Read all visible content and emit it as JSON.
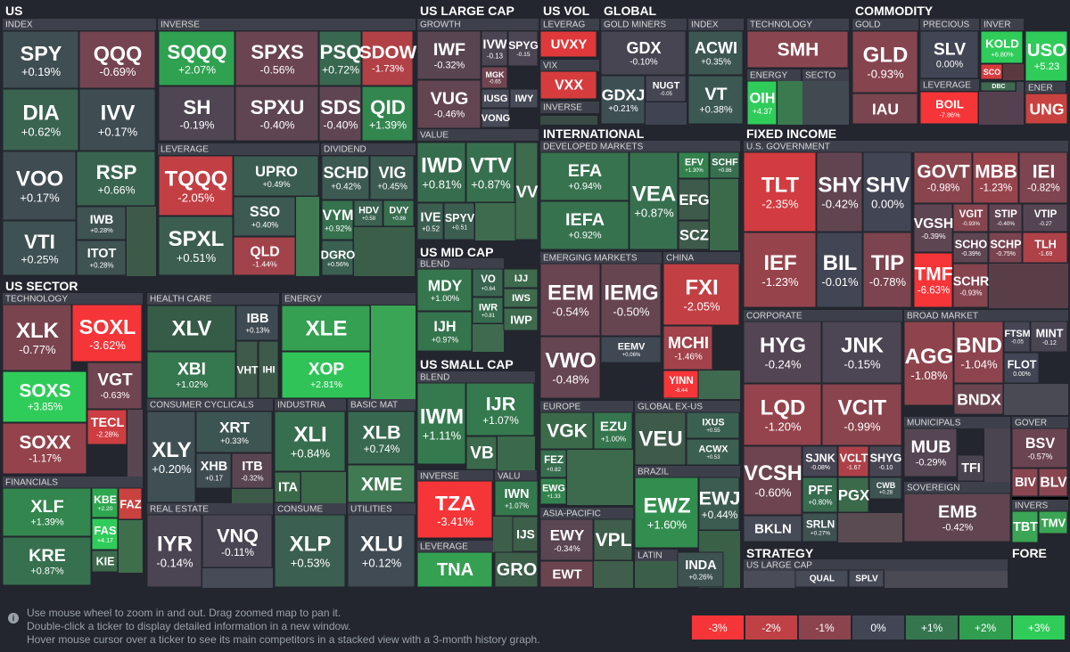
{
  "headers": [
    "US",
    "US LARGE CAP",
    "US VOL",
    "GLOBAL",
    "COMMODITY",
    "US SECTOR",
    "US MID CAP",
    "US SMALL CAP",
    "INTERNATIONAL",
    "FIXED INCOME",
    "STRATEGY",
    "FORE",
    "INDEX",
    "INVERSE",
    "LEVERAGE",
    "DIVIDEND",
    "TECHNOLOGY",
    "FINANCIALS",
    "HEALTH CARE",
    "ENERGY",
    "CONSUMER CYCLICALS",
    "INDUSTRIA",
    "BASIC MAT",
    "REAL ESTATE",
    "CONSUME",
    "UTILITIES",
    "GROWTH",
    "VALUE",
    "BLEND",
    "BLEND",
    "INVERSE",
    "VALU",
    "LEVERAGE",
    "LEVERAG",
    "VIX",
    "INVERSE",
    "GOLD MINERS",
    "INDEX",
    "TECHNOLOGY",
    "ENERGY",
    "SECTO",
    "GOLD",
    "PRECIOUS",
    "INVER",
    "LEVERAGE",
    "ENER",
    "DEVELOPED MARKETS",
    "EMERGING MARKETS",
    "CHINA",
    "EUROPE",
    "GLOBAL EX-US",
    "ASIA-PACIFIC",
    "BRAZIL",
    "LATIN",
    "U.S. GOVERNMENT",
    "CORPORATE",
    "BROAD MARKET",
    "MUNICIPALS",
    "GOVER",
    "SOVEREIGN",
    "INVERS",
    "US LARGE CAP"
  ],
  "tiles": [
    {
      "ticker": "SPY",
      "change": "+0.19%"
    },
    {
      "ticker": "QQQ",
      "change": "-0.69%"
    },
    {
      "ticker": "DIA",
      "change": "+0.62%"
    },
    {
      "ticker": "IVV",
      "change": "+0.17%"
    },
    {
      "ticker": "VOO",
      "change": "+0.17%"
    },
    {
      "ticker": "RSP",
      "change": "+0.66%"
    },
    {
      "ticker": "IWB",
      "change": "+0.28%"
    },
    {
      "ticker": "ITOT",
      "change": "+0.28%"
    },
    {
      "ticker": "VTI",
      "change": "+0.25%"
    },
    {
      "ticker": "SQQQ",
      "change": "+2.07%"
    },
    {
      "ticker": "SPXS",
      "change": "-0.56%"
    },
    {
      "ticker": "PSQ",
      "change": "+0.72%"
    },
    {
      "ticker": "SDOW",
      "change": "-1.73%"
    },
    {
      "ticker": "SH",
      "change": "-0.19%"
    },
    {
      "ticker": "SPXU",
      "change": "-0.40%"
    },
    {
      "ticker": "SDS",
      "change": "-0.40%"
    },
    {
      "ticker": "QID",
      "change": "+1.39%"
    },
    {
      "ticker": "TQQQ",
      "change": "-2.05%"
    },
    {
      "ticker": "UPRO",
      "change": "+0.49%"
    },
    {
      "ticker": "SSO",
      "change": "+0.40%"
    },
    {
      "ticker": "QLD",
      "change": "-1.44%"
    },
    {
      "ticker": "SPXL",
      "change": "+0.51%"
    },
    {
      "ticker": "SCHD",
      "change": "+0.42%"
    },
    {
      "ticker": "VIG",
      "change": "+0.45%"
    },
    {
      "ticker": "VYM",
      "change": "+0.92%"
    },
    {
      "ticker": "HDV",
      "change": "+0.58"
    },
    {
      "ticker": "DVY",
      "change": "+0.86"
    },
    {
      "ticker": "DGRO",
      "change": "+0.56%"
    },
    {
      "ticker": "XLK",
      "change": "-0.77%"
    },
    {
      "ticker": "SOXL",
      "change": "-3.62%"
    },
    {
      "ticker": "VGT",
      "change": "-0.63%"
    },
    {
      "ticker": "SOXS",
      "change": "+3.85%"
    },
    {
      "ticker": "SOXX",
      "change": "-1.17%"
    },
    {
      "ticker": "TECL",
      "change": "-2.28%"
    },
    {
      "ticker": "XLF",
      "change": "+1.39%"
    },
    {
      "ticker": "KRE",
      "change": "+0.87%"
    },
    {
      "ticker": "KBE",
      "change": "+2.20"
    },
    {
      "ticker": "FAZ"
    },
    {
      "ticker": "FAS",
      "change": "+4.17"
    },
    {
      "ticker": "KIE"
    },
    {
      "ticker": "XLV"
    },
    {
      "ticker": "XBI",
      "change": "+1.02%"
    },
    {
      "ticker": "IBB",
      "change": "+0.13%"
    },
    {
      "ticker": "VHT"
    },
    {
      "ticker": "IHI"
    },
    {
      "ticker": "XLE"
    },
    {
      "ticker": "XOP",
      "change": "+2.81%"
    },
    {
      "ticker": "XLY",
      "change": "+0.20%"
    },
    {
      "ticker": "XRT",
      "change": "+0.33%"
    },
    {
      "ticker": "XHB",
      "change": "+0.17"
    },
    {
      "ticker": "ITB",
      "change": "-0.32%"
    },
    {
      "ticker": "XLI",
      "change": "+0.84%"
    },
    {
      "ticker": "ITA"
    },
    {
      "ticker": "XLB",
      "change": "+0.74%"
    },
    {
      "ticker": "XME"
    },
    {
      "ticker": "IYR",
      "change": "-0.14%"
    },
    {
      "ticker": "VNQ",
      "change": "-0.11%"
    },
    {
      "ticker": "XLP",
      "change": "+0.53%"
    },
    {
      "ticker": "XLU",
      "change": "+0.12%"
    },
    {
      "ticker": "IWF",
      "change": "-0.32%"
    },
    {
      "ticker": "IVW",
      "change": "-0.13"
    },
    {
      "ticker": "SPYG",
      "change": "-0.15"
    },
    {
      "ticker": "VUG",
      "change": "-0.46%"
    },
    {
      "ticker": "MGK",
      "change": "-0.65"
    },
    {
      "ticker": "IUSG"
    },
    {
      "ticker": "IWY"
    },
    {
      "ticker": "VONG"
    },
    {
      "ticker": "IWD",
      "change": "+0.81%"
    },
    {
      "ticker": "VTV",
      "change": "+0.87%"
    },
    {
      "ticker": "IVE",
      "change": "+0.52"
    },
    {
      "ticker": "SPYV",
      "change": "+0.51"
    },
    {
      "ticker": "VV"
    },
    {
      "ticker": "MDY",
      "change": "+1.00%"
    },
    {
      "ticker": "VO",
      "change": "+0.64"
    },
    {
      "ticker": "IJJ"
    },
    {
      "ticker": "IWS"
    },
    {
      "ticker": "IWR",
      "change": "+0.81"
    },
    {
      "ticker": "IWP"
    },
    {
      "ticker": "IJH",
      "change": "+0.97%"
    },
    {
      "ticker": "IWM",
      "change": "+1.11%"
    },
    {
      "ticker": "IJR",
      "change": "+1.07%"
    },
    {
      "ticker": "VB"
    },
    {
      "ticker": "TZA",
      "change": "-3.41%"
    },
    {
      "ticker": "TNA"
    },
    {
      "ticker": "IWN",
      "change": "+1.07%"
    },
    {
      "ticker": "IJS"
    },
    {
      "ticker": "GRO"
    },
    {
      "ticker": "UVXY"
    },
    {
      "ticker": "VXX"
    },
    {
      "ticker": "GDX",
      "change": "-0.10%"
    },
    {
      "ticker": "GDXJ",
      "change": "+0.21%"
    },
    {
      "ticker": "NUGT",
      "change": "-0.05"
    },
    {
      "ticker": "ACWI",
      "change": "+0.35%"
    },
    {
      "ticker": "VT",
      "change": "+0.38%"
    },
    {
      "ticker": "SMH"
    },
    {
      "ticker": "OIH",
      "change": "+4.37"
    },
    {
      "ticker": "GLD",
      "change": "-0.93%"
    },
    {
      "ticker": "IAU"
    },
    {
      "ticker": "SLV",
      "change": "0.00%"
    },
    {
      "ticker": "KOLD",
      "change": "+6.80%"
    },
    {
      "ticker": "SCO"
    },
    {
      "ticker": "USO",
      "change": "+5.23"
    },
    {
      "ticker": "DBC"
    },
    {
      "ticker": "BOIL",
      "change": "-7.86%"
    },
    {
      "ticker": "UNG"
    },
    {
      "ticker": "EFA",
      "change": "+0.94%"
    },
    {
      "ticker": "IEFA",
      "change": "+0.92%"
    },
    {
      "ticker": "VEA",
      "change": "+0.87%"
    },
    {
      "ticker": "EFV",
      "change": "+1.30%"
    },
    {
      "ticker": "SCHF",
      "change": "+0.86"
    },
    {
      "ticker": "EFG"
    },
    {
      "ticker": "SCZ"
    },
    {
      "ticker": "EEM",
      "change": "-0.54%"
    },
    {
      "ticker": "IEMG",
      "change": "-0.50%"
    },
    {
      "ticker": "EEMV",
      "change": "+0.06%"
    },
    {
      "ticker": "VWO",
      "change": "-0.48%"
    },
    {
      "ticker": "FXI",
      "change": "-2.05%"
    },
    {
      "ticker": "MCHI",
      "change": "-1.46%"
    },
    {
      "ticker": "YINN",
      "change": "-6.44"
    },
    {
      "ticker": "VGK"
    },
    {
      "ticker": "EZU",
      "change": "+1.00%"
    },
    {
      "ticker": "FEZ",
      "change": "+0.82"
    },
    {
      "ticker": "EWG",
      "change": "+1.33"
    },
    {
      "ticker": "VEU"
    },
    {
      "ticker": "IXUS",
      "change": "+0.55"
    },
    {
      "ticker": "ACWX",
      "change": "+0.53"
    },
    {
      "ticker": "EWY",
      "change": "-0.34%"
    },
    {
      "ticker": "VPL"
    },
    {
      "ticker": "EWT"
    },
    {
      "ticker": "EWZ",
      "change": "+1.60%"
    },
    {
      "ticker": "EWJ",
      "change": "+0.44%"
    },
    {
      "ticker": "INDA",
      "change": "+0.26%"
    },
    {
      "ticker": "TLT",
      "change": "-2.35%"
    },
    {
      "ticker": "SHY",
      "change": "-0.42%"
    },
    {
      "ticker": "SHV",
      "change": "0.00%"
    },
    {
      "ticker": "GOVT",
      "change": "-0.98%"
    },
    {
      "ticker": "MBB",
      "change": "-1.23%"
    },
    {
      "ticker": "IEI",
      "change": "-0.82%"
    },
    {
      "ticker": "IEF",
      "change": "-1.23%"
    },
    {
      "ticker": "BIL",
      "change": "-0.01%"
    },
    {
      "ticker": "TIP",
      "change": "-0.78%"
    },
    {
      "ticker": "VGSH",
      "change": "-0.39%"
    },
    {
      "ticker": "VGIT",
      "change": "-0.93%"
    },
    {
      "ticker": "STIP",
      "change": "-0.40%"
    },
    {
      "ticker": "VTIP",
      "change": "-0.27"
    },
    {
      "ticker": "SCHO",
      "change": "-0.39%"
    },
    {
      "ticker": "SCHP",
      "change": "-0.75%"
    },
    {
      "ticker": "TLH",
      "change": "-1.69"
    },
    {
      "ticker": "TMF",
      "change": "-6.63%"
    },
    {
      "ticker": "SCHR",
      "change": "-0.93%"
    },
    {
      "ticker": "HYG",
      "change": "-0.24%"
    },
    {
      "ticker": "JNK",
      "change": "-0.15%"
    },
    {
      "ticker": "LQD",
      "change": "-1.20%"
    },
    {
      "ticker": "VCIT",
      "change": "-0.99%"
    },
    {
      "ticker": "VCSH",
      "change": "-0.60%"
    },
    {
      "ticker": "SJNK",
      "change": "-0.08%"
    },
    {
      "ticker": "VCLT",
      "change": "-1.67"
    },
    {
      "ticker": "SHYG",
      "change": "-0.10"
    },
    {
      "ticker": "PFF",
      "change": "+0.80%"
    },
    {
      "ticker": "PGX"
    },
    {
      "ticker": "CWB",
      "change": "+0.28"
    },
    {
      "ticker": "BKLN"
    },
    {
      "ticker": "SRLN",
      "change": "+0.27%"
    },
    {
      "ticker": "AGG",
      "change": "-1.08%"
    },
    {
      "ticker": "BND",
      "change": "-1.04%"
    },
    {
      "ticker": "BNDX"
    },
    {
      "ticker": "FTSM",
      "change": "-0.05"
    },
    {
      "ticker": "MINT",
      "change": "-0.12"
    },
    {
      "ticker": "FLOT",
      "change": "0.00%"
    },
    {
      "ticker": "MUB",
      "change": "-0.29%"
    },
    {
      "ticker": "TFI"
    },
    {
      "ticker": "BSV",
      "change": "-0.57%"
    },
    {
      "ticker": "BIV"
    },
    {
      "ticker": "BLV"
    },
    {
      "ticker": "EMB",
      "change": "-0.42%"
    },
    {
      "ticker": "TBT"
    },
    {
      "ticker": "TMV"
    },
    {
      "ticker": "QUAL"
    },
    {
      "ticker": "SPLV"
    }
  ],
  "help": [
    "Use mouse wheel to zoom in and out. Drag zoomed map to pan it.",
    "Double-click a ticker to display detailed information in a new window.",
    "Hover mouse cursor over a ticker to see its main competitors in a stacked view with a 3-month history graph."
  ],
  "legend": [
    "-3%",
    "-2%",
    "-1%",
    "0%",
    "+1%",
    "+2%",
    "+3%"
  ]
}
